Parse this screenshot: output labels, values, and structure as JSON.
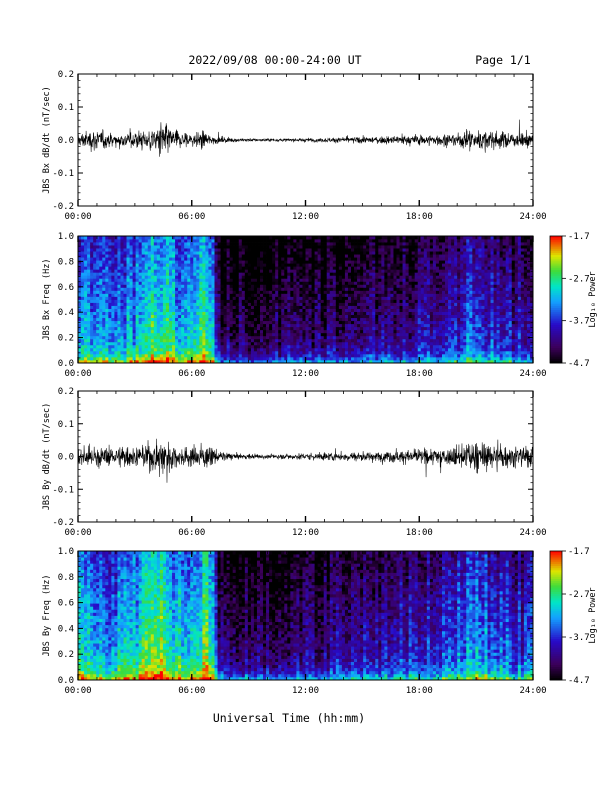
{
  "header": {
    "date_range": "2022/09/08  00:00-24:00 UT",
    "page": "Page 1/1"
  },
  "x_axis": {
    "title": "Universal Time (hh:mm)",
    "tick_labels": [
      "00:00",
      "06:00",
      "12:00",
      "18:00",
      "24:00"
    ]
  },
  "chart_data": [
    {
      "type": "line",
      "ylabel": "JBS Bx dB/dt (nT/sec)",
      "xlim": [
        0,
        24
      ],
      "ylim": [
        -0.2,
        0.2
      ],
      "y_tick_labels": [
        "0.2",
        "0.1",
        "0.0",
        "-0.1",
        "-0.2"
      ],
      "envelope": {
        "hours": [
          0,
          1,
          2,
          3,
          4,
          4.5,
          5,
          6,
          6.5,
          7,
          8,
          10,
          12,
          14,
          16,
          17,
          18,
          19,
          20,
          21,
          22,
          23,
          24
        ],
        "amplitude": [
          0.04,
          0.06,
          0.035,
          0.045,
          0.07,
          0.1,
          0.06,
          0.035,
          0.05,
          0.025,
          0.012,
          0.008,
          0.01,
          0.015,
          0.02,
          0.025,
          0.03,
          0.03,
          0.04,
          0.06,
          0.05,
          0.04,
          0.045
        ]
      }
    },
    {
      "type": "heatmap",
      "ylabel": "JBS Bx Freq (Hz)",
      "xlim": [
        0,
        24
      ],
      "ylim": [
        0,
        1.0
      ],
      "y_tick_labels": [
        "1.0",
        "0.8",
        "0.6",
        "0.4",
        "0.2",
        "0.0"
      ],
      "colorbar": {
        "label": "Log₁₀ Power",
        "ticks": [
          "-1.7",
          "-2.7",
          "-3.7",
          "-4.7"
        ],
        "range": [
          -4.7,
          -1.7
        ]
      },
      "intensity": {
        "hours": [
          0,
          1,
          2,
          3,
          4,
          4.5,
          5,
          6,
          6.8,
          7.2,
          7.5,
          8,
          10,
          12,
          14,
          16,
          18,
          19,
          20,
          21,
          22,
          23,
          24
        ],
        "level": [
          0.55,
          0.5,
          0.5,
          0.55,
          0.75,
          0.7,
          0.6,
          0.55,
          0.72,
          0.5,
          0.18,
          0.15,
          0.15,
          0.15,
          0.2,
          0.25,
          0.28,
          0.3,
          0.35,
          0.45,
          0.35,
          0.3,
          0.3
        ]
      }
    },
    {
      "type": "line",
      "ylabel": "JBS By dB/dt (nT/sec)",
      "xlim": [
        0,
        24
      ],
      "ylim": [
        -0.2,
        0.2
      ],
      "y_tick_labels": [
        "0.2",
        "0.1",
        "0.0",
        "-0.1",
        "-0.2"
      ],
      "envelope": {
        "hours": [
          0,
          1,
          2,
          3,
          4,
          4.5,
          5,
          6,
          6.5,
          7,
          7.5,
          8,
          10,
          12,
          14,
          16,
          17,
          18,
          19,
          20,
          21,
          22,
          23,
          24
        ],
        "amplitude": [
          0.05,
          0.06,
          0.05,
          0.06,
          0.08,
          0.12,
          0.07,
          0.06,
          0.07,
          0.05,
          0.03,
          0.018,
          0.012,
          0.02,
          0.025,
          0.03,
          0.035,
          0.04,
          0.045,
          0.06,
          0.09,
          0.07,
          0.06,
          0.06
        ]
      }
    },
    {
      "type": "heatmap",
      "ylabel": "JBS By Freq (Hz)",
      "xlim": [
        0,
        24
      ],
      "ylim": [
        0,
        1.0
      ],
      "y_tick_labels": [
        "1.0",
        "0.8",
        "0.6",
        "0.4",
        "0.2",
        "0.0"
      ],
      "colorbar": {
        "label": "Log₁₀ Power",
        "ticks": [
          "-1.7",
          "-2.7",
          "-3.7",
          "-4.7"
        ],
        "range": [
          -4.7,
          -1.7
        ]
      },
      "intensity": {
        "hours": [
          0,
          1,
          2,
          3,
          4,
          4.5,
          5,
          6,
          6.8,
          7.2,
          7.5,
          8,
          10,
          12,
          14,
          16,
          18,
          19,
          20,
          21,
          22,
          23,
          24
        ],
        "level": [
          0.6,
          0.55,
          0.55,
          0.6,
          0.8,
          0.75,
          0.65,
          0.6,
          0.78,
          0.55,
          0.2,
          0.18,
          0.2,
          0.22,
          0.28,
          0.3,
          0.35,
          0.38,
          0.45,
          0.55,
          0.45,
          0.4,
          0.4
        ]
      }
    }
  ]
}
